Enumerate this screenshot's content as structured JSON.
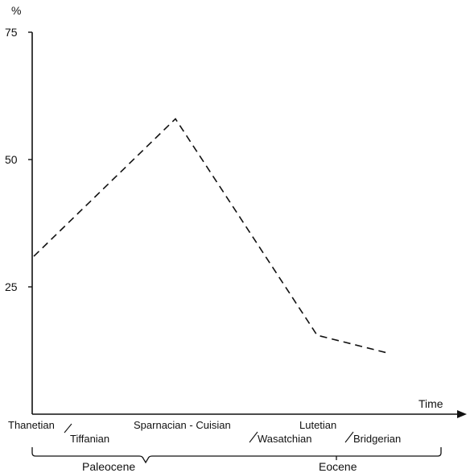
{
  "chart_data": {
    "type": "line",
    "ylabel": "%",
    "xlabel": "Time",
    "ylim": [
      0,
      75
    ],
    "yticks": [
      25,
      50,
      75
    ],
    "categories": [
      "Thanetian / Tiffanian",
      "Sparnacian - Cuisian / Wasatchian",
      "Lutetian / Bridgerian",
      ""
    ],
    "category_labels": [
      {
        "top": "Thanetian",
        "bottom": "Tiffanian"
      },
      {
        "top": "Sparnacian - Cuisian",
        "bottom": "Wasatchian"
      },
      {
        "top": "Lutetian",
        "bottom": "Bridgerian"
      }
    ],
    "epochs": [
      "Paleocene",
      "Eocene"
    ],
    "series": [
      {
        "style": "dashed",
        "x": [
          0,
          1,
          2,
          2.5
        ],
        "values": [
          31,
          58,
          15.5,
          12
        ]
      }
    ],
    "grid": false,
    "legend": "none"
  }
}
